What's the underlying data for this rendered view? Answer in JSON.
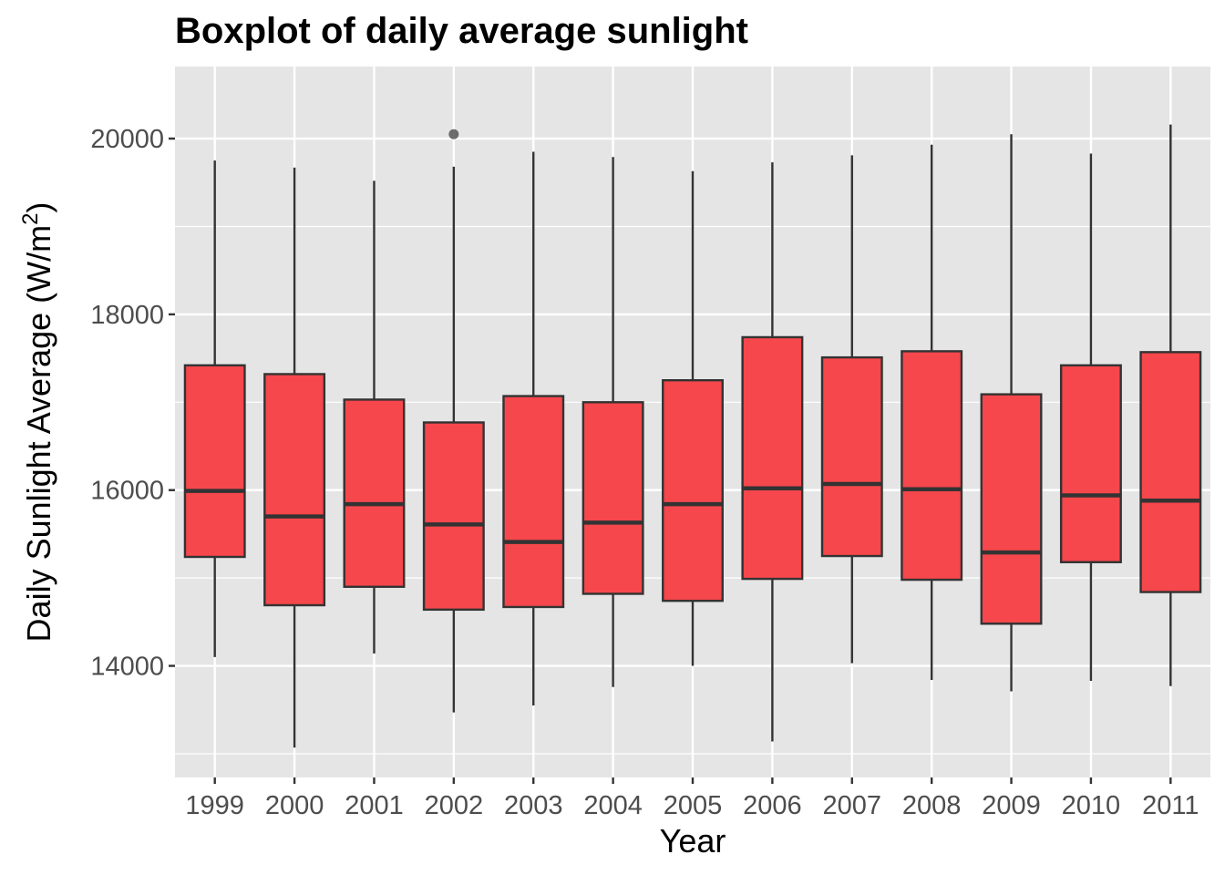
{
  "chart_data": {
    "type": "boxplot",
    "title": "Boxplot of daily average sunlight",
    "xlabel": "Year",
    "ylabel": "Daily Sunlight Average (W/m",
    "ylabel_superscript": "2",
    "ylabel_suffix": ")",
    "ylim": [
      12730,
      20820
    ],
    "yticks": [
      14000,
      16000,
      18000,
      20000
    ],
    "categories": [
      "1999",
      "2000",
      "2001",
      "2002",
      "2003",
      "2004",
      "2005",
      "2006",
      "2007",
      "2008",
      "2009",
      "2010",
      "2011"
    ],
    "boxes": [
      {
        "category": "1999",
        "min": 14100,
        "q1": 15240,
        "median": 15990,
        "q3": 17420,
        "max": 19750,
        "outliers": []
      },
      {
        "category": "2000",
        "min": 13070,
        "q1": 14690,
        "median": 15700,
        "q3": 17320,
        "max": 19670,
        "outliers": []
      },
      {
        "category": "2001",
        "min": 14140,
        "q1": 14900,
        "median": 15840,
        "q3": 17030,
        "max": 19520,
        "outliers": []
      },
      {
        "category": "2002",
        "min": 13470,
        "q1": 14640,
        "median": 15610,
        "q3": 16770,
        "max": 19680,
        "outliers": [
          20050
        ]
      },
      {
        "category": "2003",
        "min": 13550,
        "q1": 14670,
        "median": 15410,
        "q3": 17070,
        "max": 19850,
        "outliers": []
      },
      {
        "category": "2004",
        "min": 13760,
        "q1": 14820,
        "median": 15630,
        "q3": 17000,
        "max": 19790,
        "outliers": []
      },
      {
        "category": "2005",
        "min": 14000,
        "q1": 14740,
        "median": 15840,
        "q3": 17250,
        "max": 19630,
        "outliers": []
      },
      {
        "category": "2006",
        "min": 13140,
        "q1": 14990,
        "median": 16020,
        "q3": 17740,
        "max": 19730,
        "outliers": []
      },
      {
        "category": "2007",
        "min": 14030,
        "q1": 15250,
        "median": 16070,
        "q3": 17510,
        "max": 19810,
        "outliers": []
      },
      {
        "category": "2008",
        "min": 13840,
        "q1": 14980,
        "median": 16010,
        "q3": 17580,
        "max": 19930,
        "outliers": []
      },
      {
        "category": "2009",
        "min": 13710,
        "q1": 14480,
        "median": 15290,
        "q3": 17090,
        "max": 20050,
        "outliers": []
      },
      {
        "category": "2010",
        "min": 13830,
        "q1": 15180,
        "median": 15940,
        "q3": 17420,
        "max": 19830,
        "outliers": []
      },
      {
        "category": "2011",
        "min": 13770,
        "q1": 14840,
        "median": 15880,
        "q3": 17570,
        "max": 20160,
        "outliers": []
      }
    ],
    "grid": true,
    "colors": {
      "box_fill": "#f5474c",
      "box_stroke": "#333333",
      "panel_bg": "#e5e5e5",
      "grid_major": "#ffffff",
      "outlier": "#555555"
    }
  }
}
